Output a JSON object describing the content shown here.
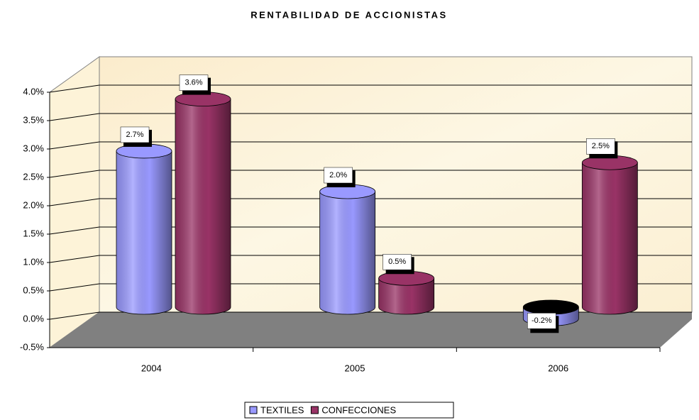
{
  "chart_data": {
    "type": "bar",
    "title": "RENTABILIDAD DE ACCIONISTAS",
    "categories": [
      "2004",
      "2005",
      "2006"
    ],
    "series": [
      {
        "name": "TEXTILES",
        "color": "#9999ff",
        "values": [
          2.7,
          2.0,
          -0.2
        ],
        "value_labels": [
          "2.7%",
          "2.0%",
          "-0.2%"
        ]
      },
      {
        "name": "CONFECCIONES",
        "color": "#993366",
        "values": [
          3.6,
          0.5,
          2.5
        ],
        "value_labels": [
          "3.6%",
          "0.5%",
          "2.5%"
        ]
      }
    ],
    "ylim": [
      -0.5,
      4.0
    ],
    "yticks": [
      {
        "value": -0.5,
        "label": "-0.5%"
      },
      {
        "value": 0.0,
        "label": "0.0%"
      },
      {
        "value": 0.5,
        "label": "0.5%"
      },
      {
        "value": 1.0,
        "label": "1.0%"
      },
      {
        "value": 1.5,
        "label": "1.5%"
      },
      {
        "value": 2.0,
        "label": "2.0%"
      },
      {
        "value": 2.5,
        "label": "2.5%"
      },
      {
        "value": 3.0,
        "label": "3.0%"
      },
      {
        "value": 3.5,
        "label": "3.5%"
      },
      {
        "value": 4.0,
        "label": "4.0%"
      }
    ],
    "grid": true,
    "legend": "bottom"
  }
}
